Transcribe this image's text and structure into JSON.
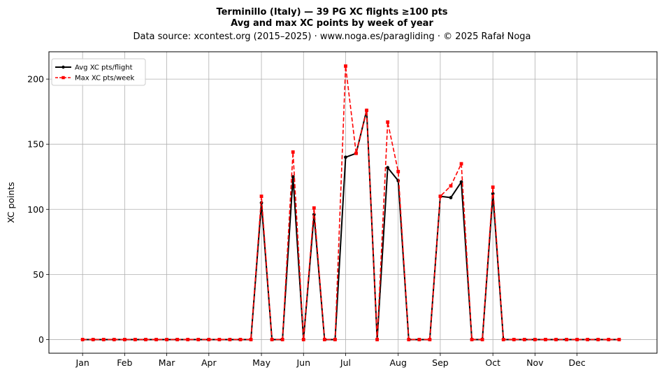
{
  "chart_data": {
    "type": "line",
    "title": "Terminillo (Italy)  —  39 PG XC flights ≥100 pts",
    "subtitle": "Avg and max XC points by week of year",
    "source_line": "Data source: xcontest.org (2015–2025)  ·  www.noga.es/paragliding  ·  © 2025 Rafał Noga",
    "xlabel": "",
    "ylabel": "XC points",
    "x_weeks": [
      1,
      2,
      3,
      4,
      5,
      6,
      7,
      8,
      9,
      10,
      11,
      12,
      13,
      14,
      15,
      16,
      17,
      18,
      19,
      20,
      21,
      22,
      23,
      24,
      25,
      26,
      27,
      28,
      29,
      30,
      31,
      32,
      33,
      34,
      35,
      36,
      37,
      38,
      39,
      40,
      41,
      42,
      43,
      44,
      45,
      46,
      47,
      48,
      49,
      50,
      51,
      52
    ],
    "xlim": [
      -2.2,
      55.6
    ],
    "ylim": [
      -10.5,
      221
    ],
    "x_ticks": [
      {
        "value": 1,
        "label": "Jan"
      },
      {
        "value": 5,
        "label": "Feb"
      },
      {
        "value": 9,
        "label": "Mar"
      },
      {
        "value": 13,
        "label": "Apr"
      },
      {
        "value": 18,
        "label": "May"
      },
      {
        "value": 22,
        "label": "Jun"
      },
      {
        "value": 26,
        "label": "Jul"
      },
      {
        "value": 31,
        "label": "Aug"
      },
      {
        "value": 35,
        "label": "Sep"
      },
      {
        "value": 40,
        "label": "Oct"
      },
      {
        "value": 44,
        "label": "Nov"
      },
      {
        "value": 48,
        "label": "Dec"
      }
    ],
    "y_ticks": [
      0,
      50,
      100,
      150,
      200
    ],
    "grid": true,
    "legend_position": "top-left",
    "series": [
      {
        "name": "Avg XC pts/flight",
        "color": "#000000",
        "style": "solid",
        "marker": "circle",
        "values": [
          0,
          0,
          0,
          0,
          0,
          0,
          0,
          0,
          0,
          0,
          0,
          0,
          0,
          0,
          0,
          0,
          0,
          105,
          0,
          0,
          125,
          0,
          96,
          0,
          0,
          140,
          143,
          176,
          0,
          132,
          122,
          0,
          0,
          0,
          110,
          109,
          121,
          0,
          0,
          112,
          0,
          0,
          0,
          0,
          0,
          0,
          0,
          0,
          0,
          0,
          0,
          0
        ]
      },
      {
        "name": "Max XC pts/week",
        "color": "#ff0000",
        "style": "dashed",
        "marker": "square",
        "values": [
          0,
          0,
          0,
          0,
          0,
          0,
          0,
          0,
          0,
          0,
          0,
          0,
          0,
          0,
          0,
          0,
          0,
          110,
          0,
          0,
          144,
          0,
          101,
          0,
          0,
          210,
          143,
          176,
          0,
          167,
          129,
          0,
          0,
          0,
          110,
          118,
          135,
          0,
          0,
          117,
          0,
          0,
          0,
          0,
          0,
          0,
          0,
          0,
          0,
          0,
          0,
          0
        ]
      }
    ]
  }
}
